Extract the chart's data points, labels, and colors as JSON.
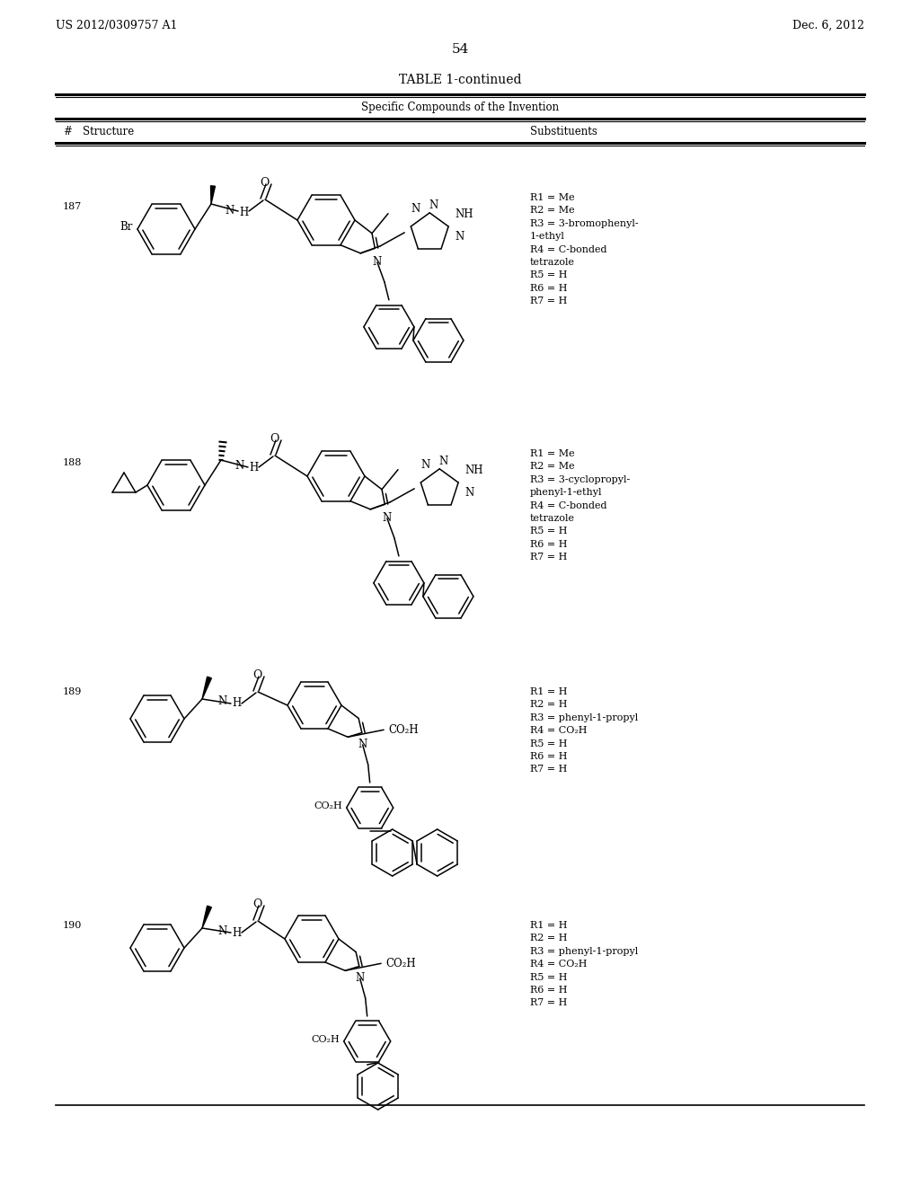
{
  "page_header_left": "US 2012/0309757 A1",
  "page_header_right": "Dec. 6, 2012",
  "page_number": "54",
  "table_title": "TABLE 1-continued",
  "table_subtitle": "Specific Compounds of the Invention",
  "col_header_num": "#",
  "col_header_struct": "Structure",
  "col_header_sub": "Substituents",
  "sub_187": "R1 = Me\nR2 = Me\nR3 = 3-bromophenyl-\n1-ethyl\nR4 = C-bonded\ntetrazole\nR5 = H\nR6 = H\nR7 = H",
  "sub_188": "R1 = Me\nR2 = Me\nR3 = 3-cyclopropyl-\nphenyl-1-ethyl\nR4 = C-bonded\ntetrazole\nR5 = H\nR6 = H\nR7 = H",
  "sub_189": "R1 = H\nR2 = H\nR3 = phenyl-1-propyl\nR4 = CO₂H\nR5 = H\nR6 = H\nR7 = H",
  "sub_190": "R1 = H\nR2 = H\nR3 = phenyl-1-propyl\nR4 = CO₂H\nR5 = H\nR6 = H\nR7 = H",
  "background_color": "#ffffff",
  "text_color": "#000000",
  "line_color": "#000000"
}
